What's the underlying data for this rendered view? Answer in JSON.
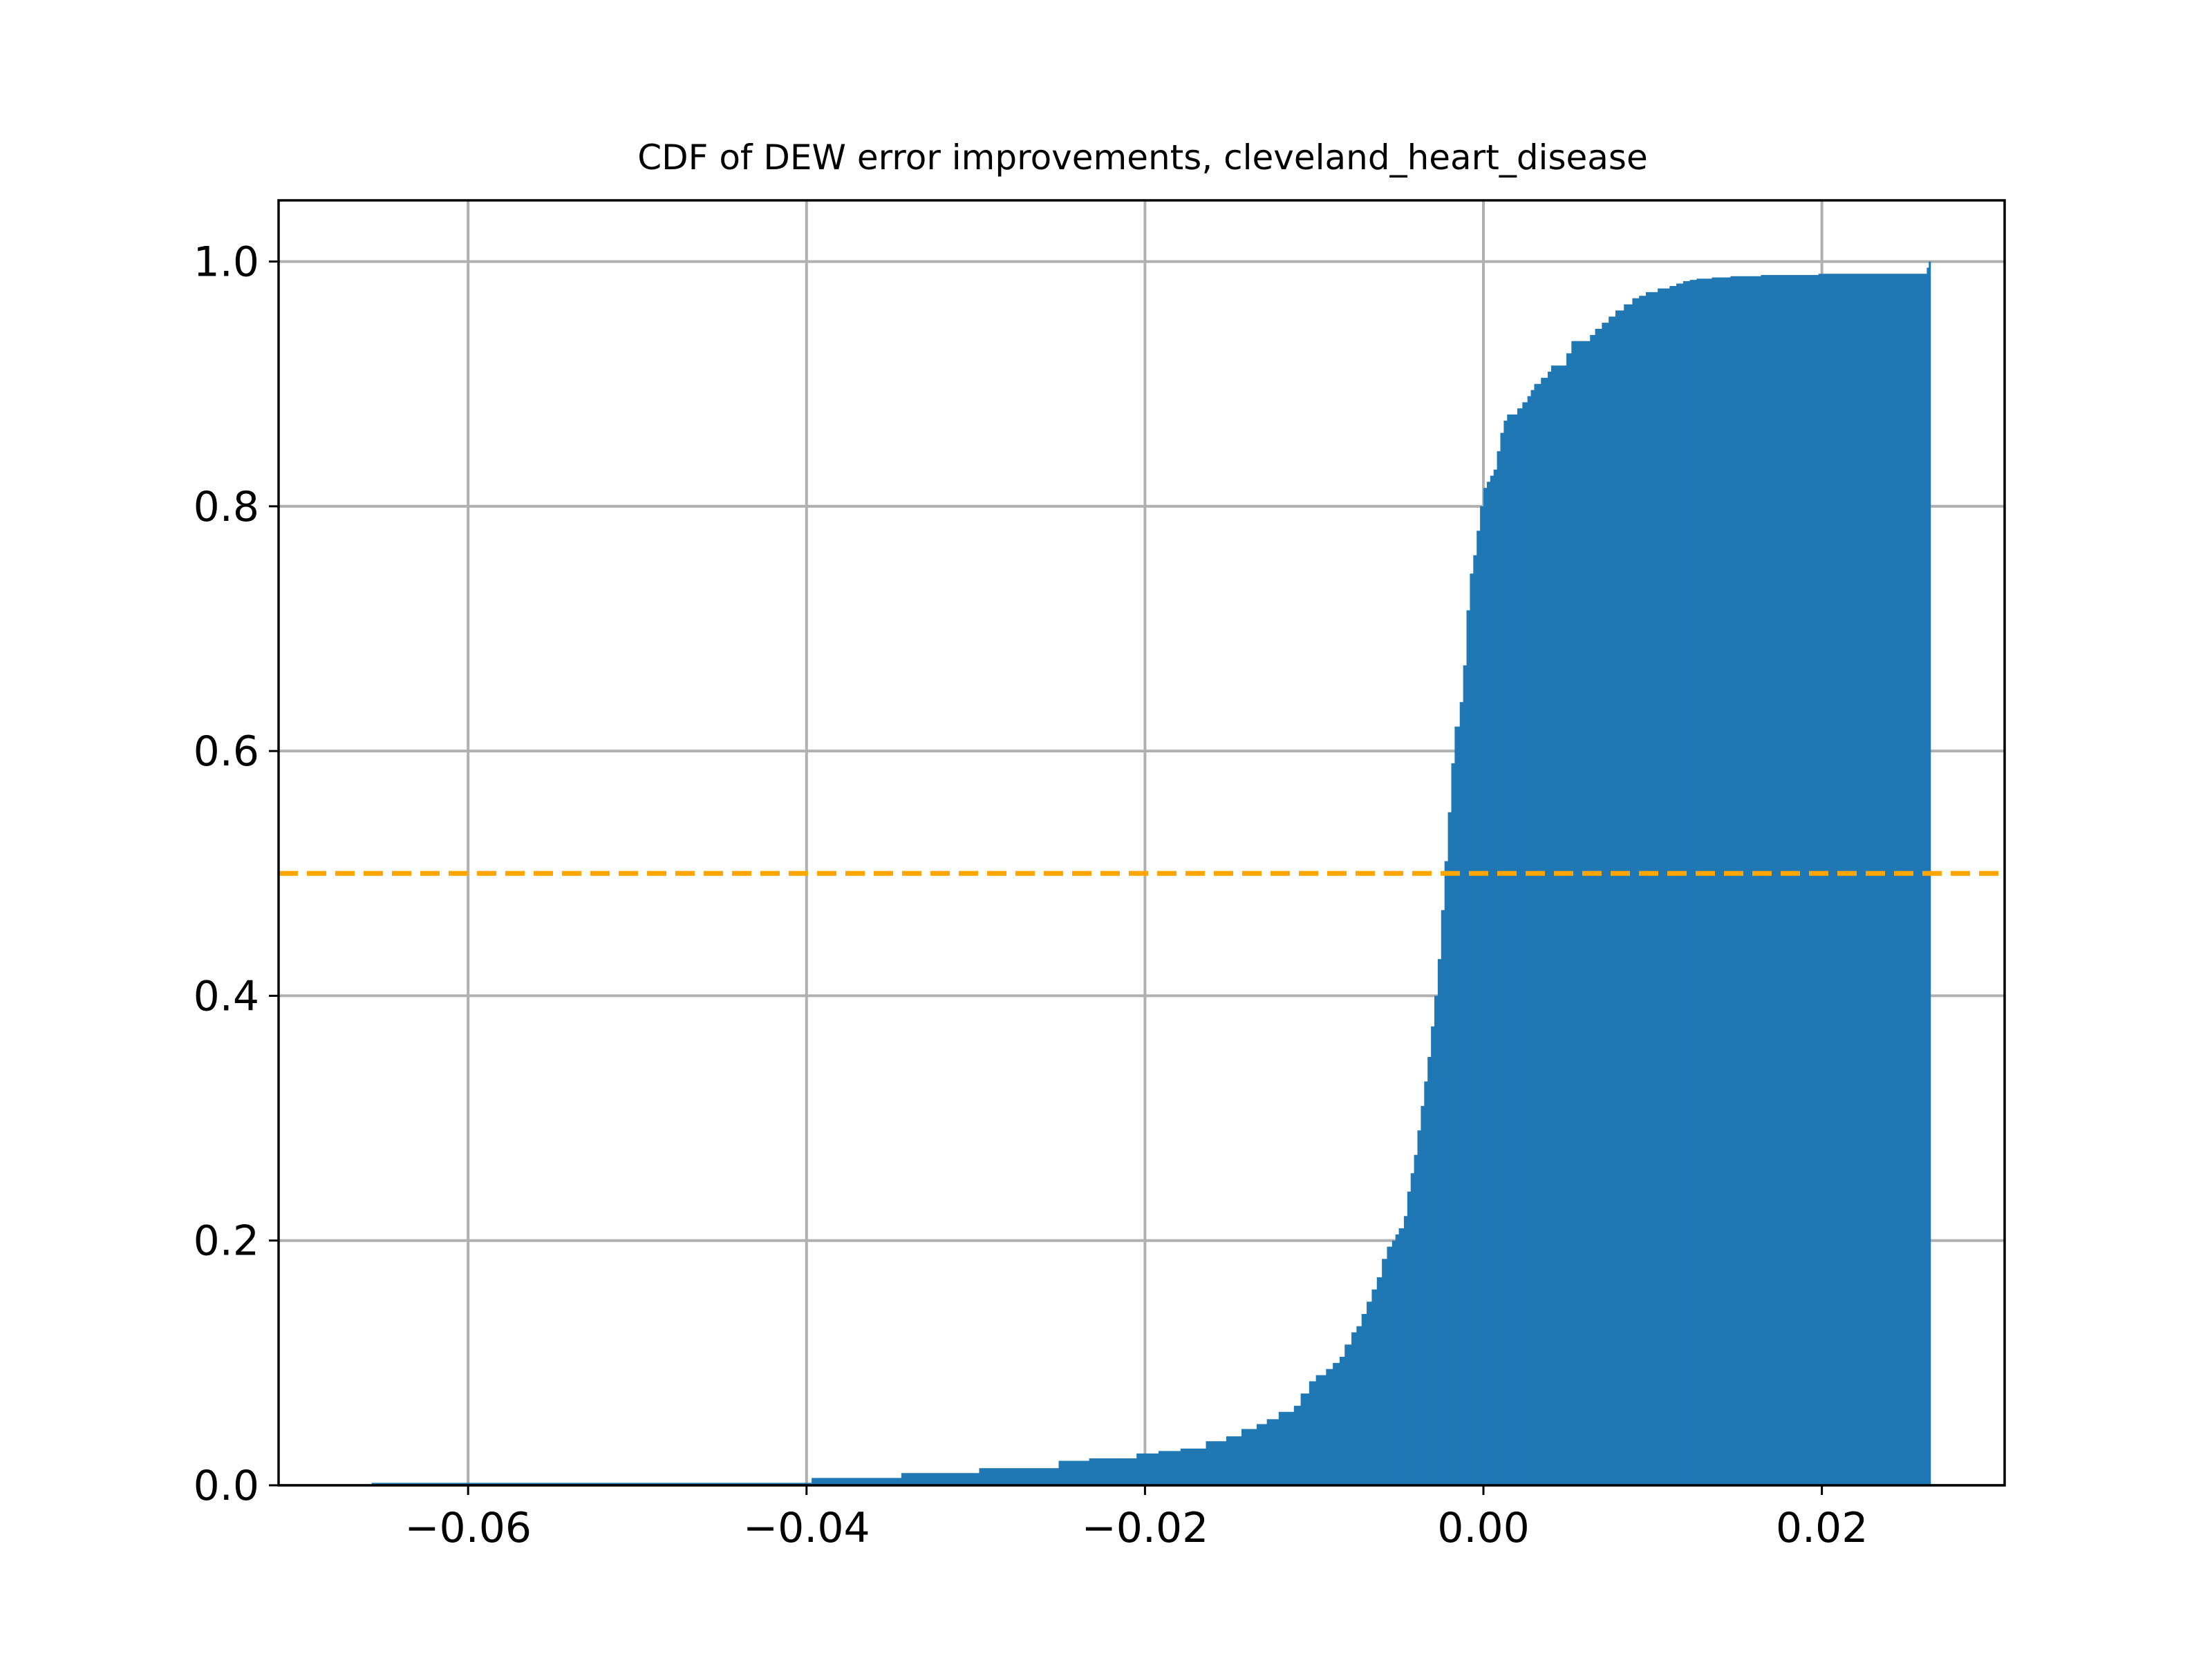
{
  "chart_data": {
    "type": "area",
    "title": "CDF of DEW error improvements, cleveland_heart_disease",
    "xlabel": "",
    "ylabel": "",
    "xlim": [
      -0.0712,
      0.0308
    ],
    "ylim": [
      0.0,
      1.05
    ],
    "grid": true,
    "x_ticks": [
      -0.06,
      -0.04,
      -0.02,
      0.0,
      0.02
    ],
    "x_tick_labels": [
      "−0.06",
      "−0.04",
      "−0.02",
      "0.00",
      "0.02"
    ],
    "y_ticks": [
      0.0,
      0.2,
      0.4,
      0.6,
      0.8,
      1.0
    ],
    "y_tick_labels": [
      "0.0",
      "0.2",
      "0.4",
      "0.6",
      "0.8",
      "1.0"
    ],
    "colors": {
      "fill": "#1f77b4",
      "reference_line": "#ffa500",
      "grid": "#b0b0b0"
    },
    "reference_line": {
      "y": 0.5,
      "style": "dashed"
    },
    "series": [
      {
        "x": [
          -0.0657,
          -0.0397,
          -0.0344,
          -0.0298,
          -0.0251,
          -0.0233,
          -0.0205,
          -0.0192,
          -0.0179,
          -0.0164,
          -0.0152,
          -0.0143,
          -0.0134,
          -0.0128,
          -0.0121,
          -0.0112,
          -0.0108,
          -0.0103,
          -0.0099,
          -0.0093,
          -0.0089,
          -0.0085,
          -0.0082,
          -0.0078,
          -0.0075,
          -0.0072,
          -0.0069,
          -0.0066,
          -0.0063,
          -0.006,
          -0.0057,
          -0.0054,
          -0.0052,
          -0.005,
          -0.0047,
          -0.0045,
          -0.0043,
          -0.0041,
          -0.0039,
          -0.0037,
          -0.0035,
          -0.0033,
          -0.0031,
          -0.0029,
          -0.0027,
          -0.0025,
          -0.0023,
          -0.0021,
          -0.0019,
          -0.0017,
          -0.0014,
          -0.0012,
          -0.001,
          -0.0008,
          -0.0006,
          -0.0004,
          -0.0002,
          0.0,
          0.0002,
          0.0004,
          0.0006,
          0.0008,
          0.001,
          0.0012,
          0.0014,
          0.0016,
          0.0018,
          0.002,
          0.0023,
          0.0026,
          0.0028,
          0.003,
          0.0034,
          0.0038,
          0.004,
          0.0049,
          0.0052,
          0.0063,
          0.0066,
          0.007,
          0.0074,
          0.0078,
          0.0083,
          0.0088,
          0.0092,
          0.0096,
          0.0103,
          0.011,
          0.0114,
          0.0118,
          0.0122,
          0.0126,
          0.0135,
          0.0146,
          0.0164,
          0.0198,
          0.0262,
          0.0264
        ],
        "y": [
          0.002,
          0.006,
          0.01,
          0.014,
          0.02,
          0.022,
          0.026,
          0.028,
          0.03,
          0.036,
          0.04,
          0.046,
          0.05,
          0.054,
          0.06,
          0.065,
          0.075,
          0.085,
          0.09,
          0.095,
          0.1,
          0.105,
          0.115,
          0.125,
          0.13,
          0.14,
          0.15,
          0.16,
          0.17,
          0.185,
          0.195,
          0.2,
          0.205,
          0.21,
          0.22,
          0.24,
          0.255,
          0.27,
          0.29,
          0.31,
          0.33,
          0.35,
          0.375,
          0.4,
          0.43,
          0.47,
          0.51,
          0.55,
          0.59,
          0.62,
          0.64,
          0.67,
          0.715,
          0.745,
          0.76,
          0.78,
          0.8,
          0.815,
          0.82,
          0.825,
          0.83,
          0.845,
          0.86,
          0.87,
          0.875,
          0.875,
          0.875,
          0.88,
          0.885,
          0.89,
          0.895,
          0.9,
          0.905,
          0.91,
          0.915,
          0.925,
          0.935,
          0.94,
          0.945,
          0.95,
          0.955,
          0.96,
          0.965,
          0.97,
          0.972,
          0.975,
          0.978,
          0.98,
          0.982,
          0.984,
          0.985,
          0.986,
          0.987,
          0.988,
          0.989,
          0.99,
          0.995,
          1.0
        ]
      }
    ]
  }
}
